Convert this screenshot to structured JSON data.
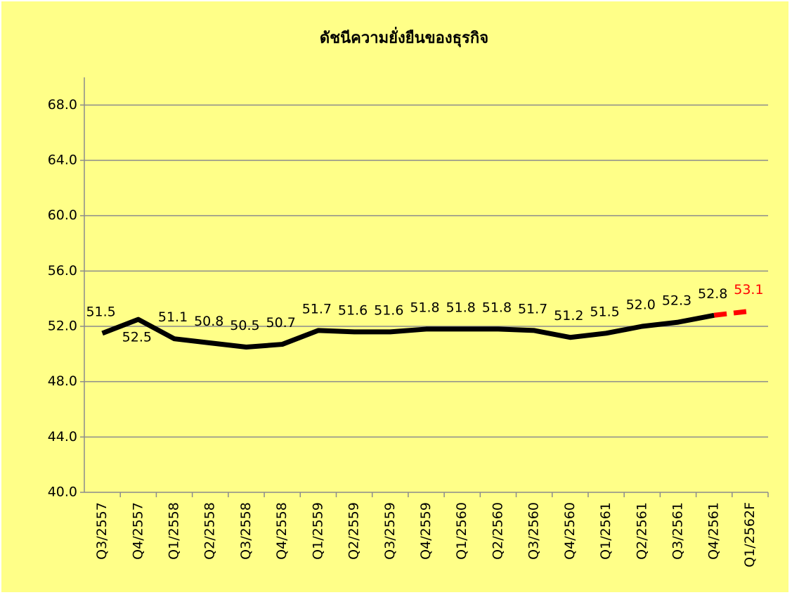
{
  "chart_data": {
    "type": "line",
    "title": "ดัชนีความยั่งยืนของธุรกิจ",
    "categories": [
      "Q3/2557",
      "Q4/2557",
      "Q1/2558",
      "Q2/2558",
      "Q3/2558",
      "Q4/2558",
      "Q1/2559",
      "Q2/2559",
      "Q3/2559",
      "Q4/2559",
      "Q1/2560",
      "Q2/2560",
      "Q3/2560",
      "Q4/2560",
      "Q1/2561",
      "Q2/2561",
      "Q3/2561",
      "Q4/2561",
      "Q1/2562F"
    ],
    "series": [
      {
        "color": "#000000",
        "dashed": false,
        "values": [
          51.5,
          52.5,
          51.1,
          50.8,
          50.5,
          50.7,
          51.7,
          51.6,
          51.6,
          51.8,
          51.8,
          51.8,
          51.7,
          51.2,
          51.5,
          52.0,
          52.3,
          52.8,
          null
        ],
        "value_labels": [
          "51.5",
          "52.5",
          "51.1",
          "50.8",
          "50.5",
          "50.7",
          "51.7",
          "51.6",
          "51.6",
          "51.8",
          "51.8",
          "51.8",
          "51.7",
          "51.2",
          "51.5",
          "52.0",
          "52.3",
          "52.8",
          null
        ]
      },
      {
        "color": "#ff0000",
        "dashed": true,
        "values": [
          null,
          null,
          null,
          null,
          null,
          null,
          null,
          null,
          null,
          null,
          null,
          null,
          null,
          null,
          null,
          null,
          null,
          52.8,
          53.1
        ],
        "value_labels": [
          null,
          null,
          null,
          null,
          null,
          null,
          null,
          null,
          null,
          null,
          null,
          null,
          null,
          null,
          null,
          null,
          null,
          null,
          "53.1"
        ]
      }
    ],
    "ylim": [
      40,
      70
    ],
    "yticks": [
      {
        "value": 40,
        "label": "40.0"
      },
      {
        "value": 44,
        "label": "44.0"
      },
      {
        "value": 48,
        "label": "48.0"
      },
      {
        "value": 52,
        "label": "52.0"
      },
      {
        "value": 56,
        "label": "56.0"
      },
      {
        "value": 60,
        "label": "60.0"
      },
      {
        "value": 64,
        "label": "64.0"
      },
      {
        "value": 68,
        "label": "68.0"
      }
    ],
    "grid": true
  }
}
